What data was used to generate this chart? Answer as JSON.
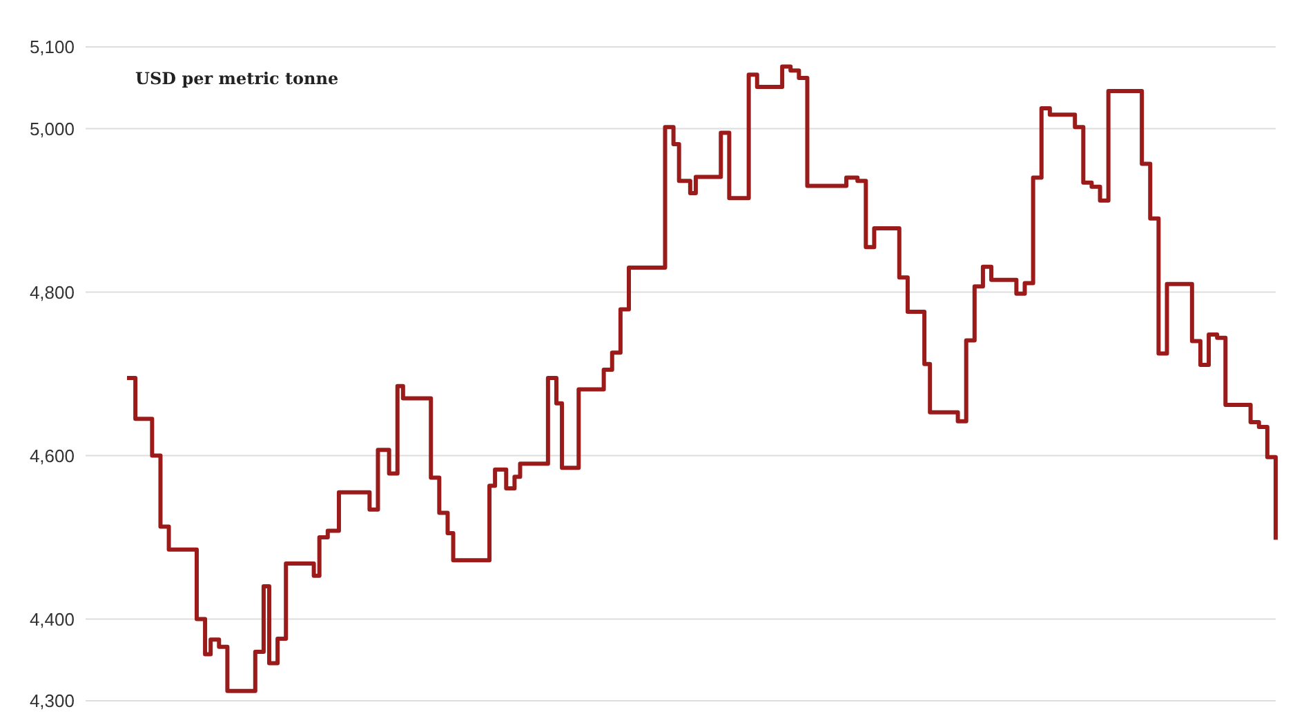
{
  "chart_data": {
    "type": "step",
    "ylabel": "USD per metric tonne",
    "categories": [
      null,
      null,
      null,
      null,
      null,
      null,
      null,
      null,
      null,
      null,
      null,
      null,
      null,
      null,
      null,
      null,
      null,
      null,
      null,
      null,
      null,
      null,
      null,
      null,
      null,
      null,
      null,
      null,
      null,
      null,
      null,
      null,
      null,
      null,
      null,
      null,
      null,
      null,
      null,
      null,
      null,
      null,
      null,
      null,
      null,
      null,
      null,
      null,
      null,
      null,
      null,
      null,
      null,
      null,
      null,
      null,
      null,
      null,
      null,
      null,
      null,
      null,
      null,
      null,
      null,
      null,
      null,
      null,
      null,
      null,
      null,
      null,
      null,
      null,
      null,
      null,
      null,
      null,
      null,
      null,
      null,
      null,
      null,
      null,
      null,
      null,
      null,
      null,
      null,
      null,
      null,
      null,
      null,
      null,
      null,
      null,
      null,
      null,
      null,
      null,
      null,
      null,
      null,
      null,
      null,
      null,
      null,
      null,
      null,
      null,
      null,
      null,
      null,
      null,
      null,
      null,
      null,
      null,
      null,
      null,
      null,
      null,
      null,
      null,
      null,
      null,
      null,
      null,
      null,
      null,
      null,
      null,
      null,
      null,
      null,
      null,
      null,
      null,
      null,
      null,
      null,
      null,
      null,
      null,
      null,
      null,
      null,
      null,
      null,
      null,
      null,
      null,
      null,
      null,
      null,
      null,
      null,
      null,
      null,
      null,
      null,
      null,
      null,
      null,
      null,
      null,
      null,
      null,
      null,
      null,
      null,
      null,
      null,
      null,
      null,
      null,
      null,
      null,
      null,
      null,
      null,
      null,
      null,
      null,
      null,
      null,
      null,
      null,
      null,
      null,
      null,
      null,
      null,
      null,
      null,
      null,
      null,
      null,
      null,
      null,
      null,
      null,
      null,
      null,
      null,
      null,
      null,
      null,
      null,
      null,
      null,
      null,
      null,
      null,
      null,
      null,
      null,
      null,
      null,
      null,
      null,
      null,
      null,
      null,
      null,
      null,
      null,
      null,
      null,
      null,
      null,
      null,
      null,
      null,
      null,
      null,
      null,
      null,
      null,
      null,
      null,
      null,
      null,
      null,
      null,
      null,
      null,
      null,
      null,
      null,
      null,
      null,
      null,
      null,
      null,
      null,
      null,
      null,
      null,
      null,
      null,
      null,
      null,
      null,
      null,
      null,
      null,
      null,
      null,
      null,
      null,
      null,
      null,
      null,
      null,
      null,
      null,
      null,
      null,
      null,
      null,
      null,
      null,
      null,
      null,
      null,
      null,
      null,
      null,
      null,
      null,
      null,
      null,
      null,
      null,
      null,
      null,
      null,
      null,
      null,
      null,
      null,
      null,
      null,
      null,
      null,
      null,
      null,
      null,
      null,
      null,
      null,
      null,
      null,
      null,
      null,
      null,
      null,
      null,
      null,
      null,
      null,
      null,
      null,
      null,
      null,
      null,
      null,
      null,
      null,
      null,
      null,
      null,
      null,
      null,
      null,
      null,
      null,
      null,
      null,
      null,
      null,
      null,
      null,
      null,
      null,
      null,
      null,
      null,
      null,
      null,
      null,
      null,
      null,
      null,
      null,
      null,
      null,
      null,
      null,
      null,
      null,
      null,
      null,
      null,
      null,
      null,
      null,
      null,
      null,
      null,
      null,
      null,
      null,
      null,
      null,
      null,
      null,
      null,
      null,
      null,
      null,
      null,
      null,
      null,
      null,
      null,
      null,
      null,
      null,
      null,
      null,
      null,
      null,
      null,
      null,
      null,
      null,
      null,
      null,
      null,
      null,
      null,
      null,
      null,
      null,
      null,
      null,
      null,
      null,
      null,
      null,
      null
    ],
    "series": [
      {
        "color": "#9b1b1b",
        "values": [
          4695,
          4695,
          4695,
          4645,
          4645,
          4645,
          4645,
          4645,
          4645,
          4600,
          4600,
          4600,
          4513,
          4513,
          4513,
          4485,
          4485,
          4485,
          4485,
          4485,
          4485,
          4485,
          4485,
          4485,
          4485,
          4400,
          4400,
          4400,
          4357,
          4357,
          4375,
          4375,
          4375,
          4366,
          4366,
          4366,
          4312,
          4312,
          4312,
          4312,
          4312,
          4312,
          4312,
          4312,
          4312,
          4312,
          4360,
          4360,
          4360,
          4440,
          4440,
          4346,
          4346,
          4346,
          4376,
          4376,
          4376,
          4468,
          4468,
          4468,
          4468,
          4468,
          4468,
          4468,
          4468,
          4468,
          4468,
          4453,
          4453,
          4500,
          4500,
          4500,
          4508,
          4508,
          4508,
          4508,
          4555,
          4555,
          4555,
          4555,
          4555,
          4555,
          4555,
          4555,
          4555,
          4555,
          4555,
          4534,
          4534,
          4534,
          4607,
          4607,
          4607,
          4607,
          4578,
          4578,
          4578,
          4685,
          4685,
          4670,
          4670,
          4670,
          4670,
          4670,
          4670,
          4670,
          4670,
          4670,
          4670,
          4573,
          4573,
          4573,
          4530,
          4530,
          4530,
          4505,
          4505,
          4472,
          4472,
          4472,
          4472,
          4472,
          4472,
          4472,
          4472,
          4472,
          4472,
          4472,
          4472,
          4472,
          4563,
          4563,
          4583,
          4583,
          4583,
          4583,
          4560,
          4560,
          4560,
          4574,
          4574,
          4590,
          4590,
          4590,
          4590,
          4590,
          4590,
          4590,
          4590,
          4590,
          4590,
          4695,
          4695,
          4695,
          4664,
          4664,
          4585,
          4585,
          4585,
          4585,
          4585,
          4585,
          4681,
          4681,
          4681,
          4681,
          4681,
          4681,
          4681,
          4681,
          4681,
          4705,
          4705,
          4705,
          4726,
          4726,
          4726,
          4779,
          4779,
          4779,
          4830,
          4830,
          4830,
          4830,
          4830,
          4830,
          4830,
          4830,
          4830,
          4830,
          4830,
          4830,
          4830,
          5002,
          5002,
          5002,
          4981,
          4981,
          4936,
          4936,
          4936,
          4936,
          4921,
          4921,
          4941,
          4941,
          4941,
          4941,
          4941,
          4941,
          4941,
          4941,
          4941,
          4995,
          4995,
          4995,
          4915,
          4915,
          4915,
          4915,
          4915,
          4915,
          4915,
          5066,
          5066,
          5066,
          5051,
          5051,
          5051,
          5051,
          5051,
          5051,
          5051,
          5051,
          5051,
          5076,
          5076,
          5076,
          5071,
          5071,
          5071,
          5062,
          5062,
          5062,
          4930,
          4930,
          4930,
          4930,
          4930,
          4930,
          4930,
          4930,
          4930,
          4930,
          4930,
          4930,
          4930,
          4930,
          4940,
          4940,
          4940,
          4940,
          4936,
          4936,
          4936,
          4855,
          4855,
          4855,
          4878,
          4878,
          4878,
          4878,
          4878,
          4878,
          4878,
          4878,
          4878,
          4818,
          4818,
          4818,
          4776,
          4776,
          4776,
          4776,
          4776,
          4776,
          4712,
          4712,
          4653,
          4653,
          4653,
          4653,
          4653,
          4653,
          4653,
          4653,
          4653,
          4653,
          4642,
          4642,
          4642,
          4741,
          4741,
          4741,
          4807,
          4807,
          4807,
          4831,
          4831,
          4831,
          4815,
          4815,
          4815,
          4815,
          4815,
          4815,
          4815,
          4815,
          4815,
          4798,
          4798,
          4798,
          4811,
          4811,
          4811,
          4940,
          4940,
          4940,
          5025,
          5025,
          5025,
          5017,
          5017,
          5017,
          5017,
          5017,
          5017,
          5017,
          5017,
          5017,
          5002,
          5002,
          5002,
          4934,
          4934,
          4934,
          4929,
          4929,
          4929,
          4912,
          4912,
          4912,
          5046,
          5046,
          5046,
          5046,
          5046,
          5046,
          5046,
          5046,
          5046,
          5046,
          5046,
          5046,
          4957,
          4957,
          4957,
          4890,
          4890,
          4890,
          4725,
          4725,
          4725,
          4810,
          4810,
          4810,
          4810,
          4810,
          4810,
          4810,
          4810,
          4810,
          4740,
          4740,
          4740,
          4711,
          4711,
          4711,
          4748,
          4748,
          4748,
          4744,
          4744,
          4744,
          4662,
          4662,
          4662,
          4662,
          4662,
          4662,
          4662,
          4662,
          4662,
          4641,
          4641,
          4641,
          4635,
          4635,
          4635,
          4598,
          4598,
          4598,
          4497
        ]
      }
    ],
    "ylim": [
      4300,
      5100
    ],
    "yticks": [
      {
        "value": 4300,
        "label": "4,300"
      },
      {
        "value": 4400,
        "label": "4,400"
      },
      {
        "value": 4600,
        "label": "4,600"
      },
      {
        "value": 4800,
        "label": "4,800"
      },
      {
        "value": 5000,
        "label": "5,000"
      },
      {
        "value": 5100,
        "label": "5,100"
      }
    ],
    "grid": "y",
    "marker": "none",
    "line_style": "solid",
    "tick_labels": "y"
  }
}
